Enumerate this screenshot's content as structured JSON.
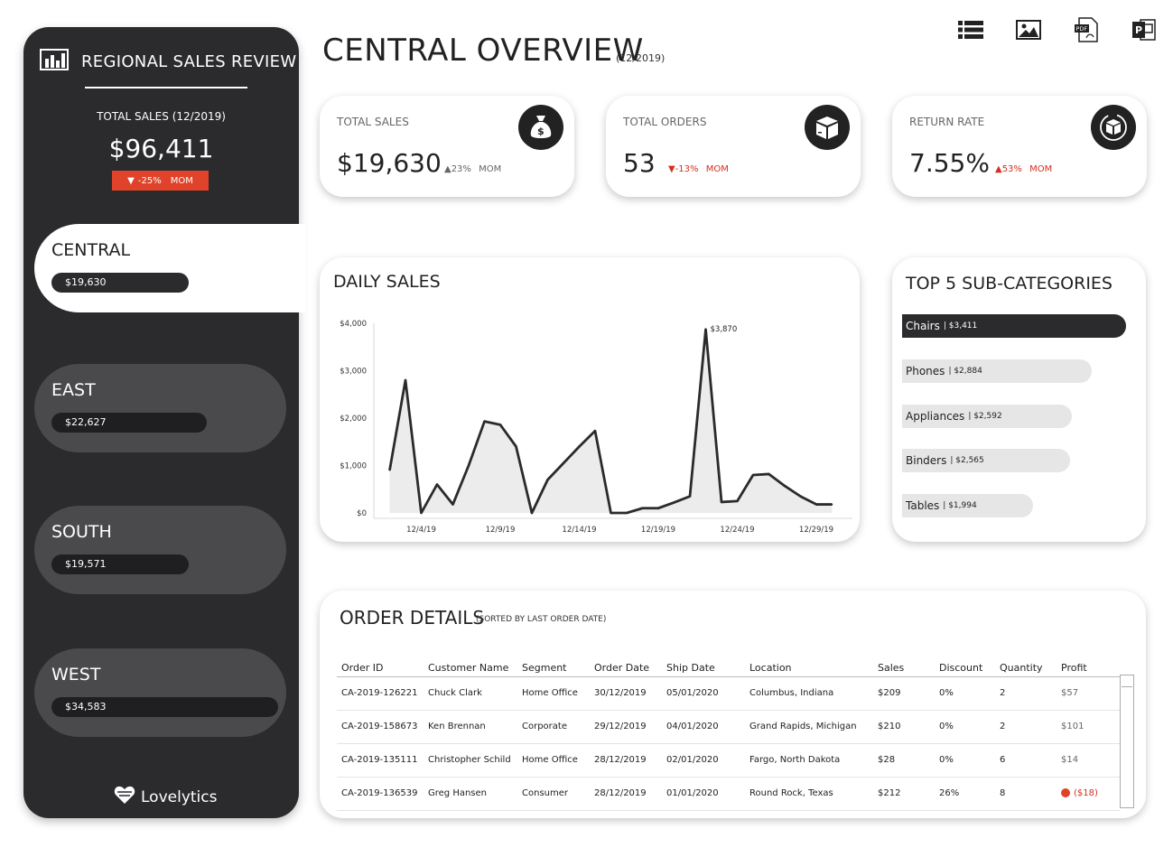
{
  "sidebar": {
    "title": "REGIONAL SALES REVIEW",
    "total_label": "TOTAL SALES (12/2019)",
    "total_value": "$96,411",
    "total_delta": "-25%",
    "total_delta_suffix": "MOM",
    "regions": [
      {
        "name": "CENTRAL",
        "value": "$19,630",
        "active": true
      },
      {
        "name": "EAST",
        "value": "$22,627"
      },
      {
        "name": "SOUTH",
        "value": "$19,571"
      },
      {
        "name": "WEST",
        "value": "$34,583"
      }
    ],
    "logo_text": "Lovelytics"
  },
  "header": {
    "title": "CENTRAL OVERVIEW",
    "date": "(12/2019)",
    "toolbar": [
      "list-icon",
      "image-icon",
      "pdf-icon",
      "powerpoint-icon"
    ]
  },
  "kpis": [
    {
      "label": "TOTAL SALES",
      "value": "$19,630",
      "delta": "▲23%",
      "suffix": "MOM",
      "icon": "money-bag-icon"
    },
    {
      "label": "TOTAL ORDERS",
      "value": "53",
      "delta": "▼-13%",
      "suffix": "MOM",
      "icon": "box-icon"
    },
    {
      "label": "RETURN RATE",
      "value": "7.55%",
      "delta": "▲53%",
      "suffix": "MOM",
      "icon": "return-box-icon"
    }
  ],
  "daily_sales": {
    "title": "DAILY SALES",
    "chart_data": {
      "type": "area",
      "x_ticks": [
        "12/4/19",
        "12/9/19",
        "12/14/19",
        "12/19/19",
        "12/24/19",
        "12/29/19"
      ],
      "y_ticks": [
        "$0",
        "$1,000",
        "$2,000",
        "$3,000",
        "$4,000"
      ],
      "ylim": [
        0,
        4000
      ],
      "x_days": [
        2,
        3,
        4,
        5,
        6,
        7,
        8,
        9,
        10,
        11,
        12,
        13,
        14,
        15,
        16,
        17,
        18,
        19,
        20,
        21,
        22,
        23,
        24,
        25,
        26,
        27,
        28,
        29,
        30
      ],
      "values": [
        900,
        2800,
        0,
        600,
        180,
        1000,
        1930,
        1860,
        1400,
        0,
        700,
        1050,
        1400,
        1730,
        0,
        0,
        100,
        100,
        220,
        350,
        3870,
        230,
        250,
        800,
        820,
        570,
        350,
        180,
        180
      ],
      "peak_label": "$3,870",
      "peak_index": 20,
      "color": "#2b2a2d",
      "fill": "#ececec"
    }
  },
  "top5": {
    "title": "TOP 5 SUB-CATEGORIES",
    "chart_data": {
      "type": "bar",
      "categories": [
        "Chairs",
        "Phones",
        "Appliances",
        "Binders",
        "Tables"
      ],
      "values": [
        3411,
        2884,
        2592,
        2565,
        1994
      ],
      "labels": [
        "$3,411",
        "$2,884",
        "$2,592",
        "$2,565",
        "$1,994"
      ]
    }
  },
  "orders": {
    "title": "ORDER DETAILS",
    "subtitle": "(SORTED BY LAST ORDER DATE)",
    "columns": [
      "Order ID",
      "Customer Name",
      "Segment",
      "Order Date",
      "Ship Date",
      "Location",
      "Sales",
      "Discount",
      "Quantity",
      "Profit"
    ],
    "rows": [
      [
        "CA-2019-126221",
        "Chuck Clark",
        "Home Office",
        "30/12/2019",
        "05/01/2020",
        "Columbus, Indiana",
        "$209",
        "0%",
        "2",
        "$57"
      ],
      [
        "CA-2019-158673",
        "Ken Brennan",
        "Corporate",
        "29/12/2019",
        "04/01/2020",
        "Grand Rapids, Michigan",
        "$210",
        "0%",
        "2",
        "$101"
      ],
      [
        "CA-2019-135111",
        "Christopher Schild",
        "Home Office",
        "28/12/2019",
        "02/01/2020",
        "Fargo, North Dakota",
        "$28",
        "0%",
        "6",
        "$14"
      ],
      [
        "CA-2019-136539",
        "Greg Hansen",
        "Consumer",
        "28/12/2019",
        "01/01/2020",
        "Round Rock, Texas",
        "$212",
        "26%",
        "8",
        "($18)"
      ]
    ]
  }
}
